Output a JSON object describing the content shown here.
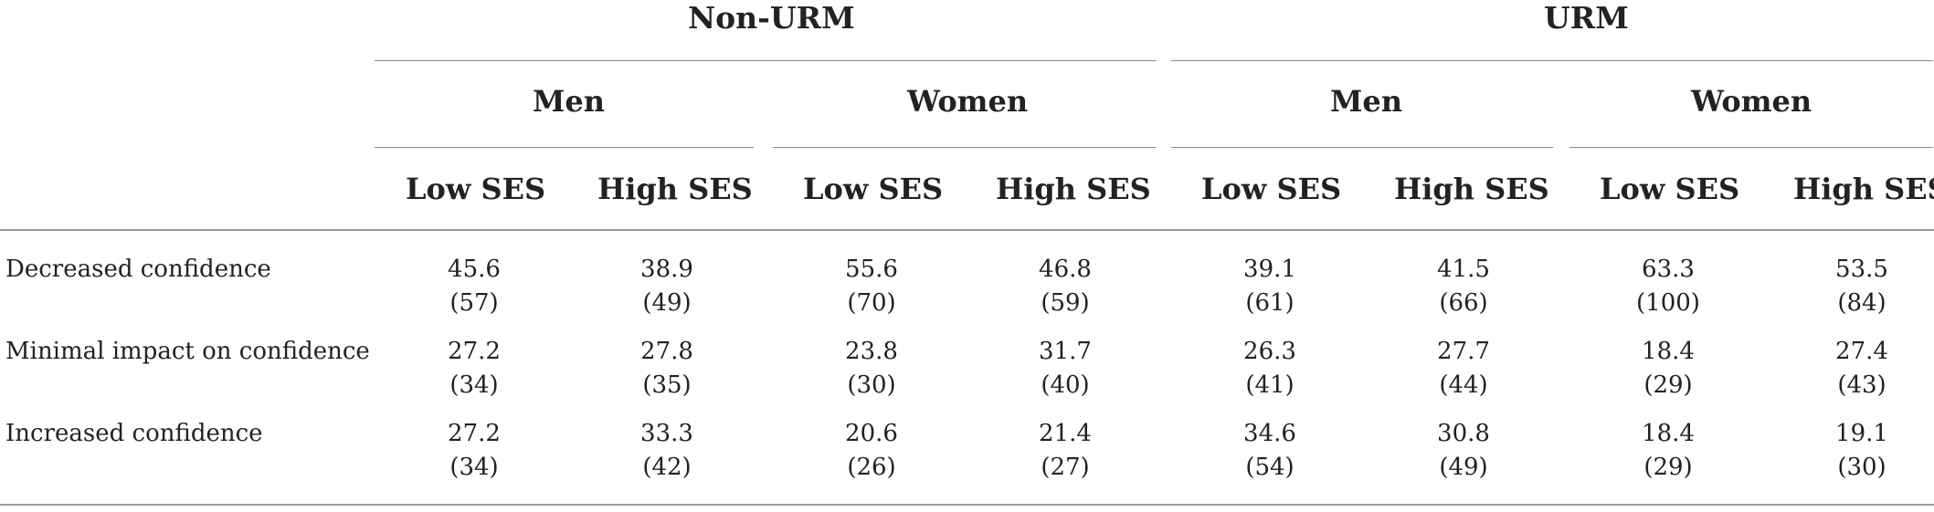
{
  "table": {
    "groups": [
      {
        "label": "Non-URM",
        "genders": [
          "Men",
          "Women"
        ]
      },
      {
        "label": "URM",
        "genders": [
          "Men",
          "Women"
        ]
      }
    ],
    "ses_labels": [
      "Low SES",
      "High SES",
      "Low SES",
      "High SES",
      "Low SES",
      "High SES",
      "Low SES",
      "High SES"
    ],
    "rows": [
      {
        "label": "Decreased confidence",
        "pct": [
          "45.6",
          "38.9",
          "55.6",
          "46.8",
          "39.1",
          "41.5",
          "63.3",
          "53.5"
        ],
        "n": [
          "(57)",
          "(49)",
          "(70)",
          "(59)",
          "(61)",
          "(66)",
          "(100)",
          "(84)"
        ]
      },
      {
        "label": "Minimal impact on confidence",
        "pct": [
          "27.2",
          "27.8",
          "23.8",
          "31.7",
          "26.3",
          "27.7",
          "18.4",
          "27.4"
        ],
        "n": [
          "(34)",
          "(35)",
          "(30)",
          "(40)",
          "(41)",
          "(44)",
          "(29)",
          "(43)"
        ]
      },
      {
        "label": "Increased confidence",
        "pct": [
          "27.2",
          "33.3",
          "20.6",
          "21.4",
          "34.6",
          "30.8",
          "18.4",
          "19.1"
        ],
        "n": [
          "(34)",
          "(42)",
          "(26)",
          "(27)",
          "(54)",
          "(49)",
          "(29)",
          "(30)"
        ]
      }
    ]
  }
}
